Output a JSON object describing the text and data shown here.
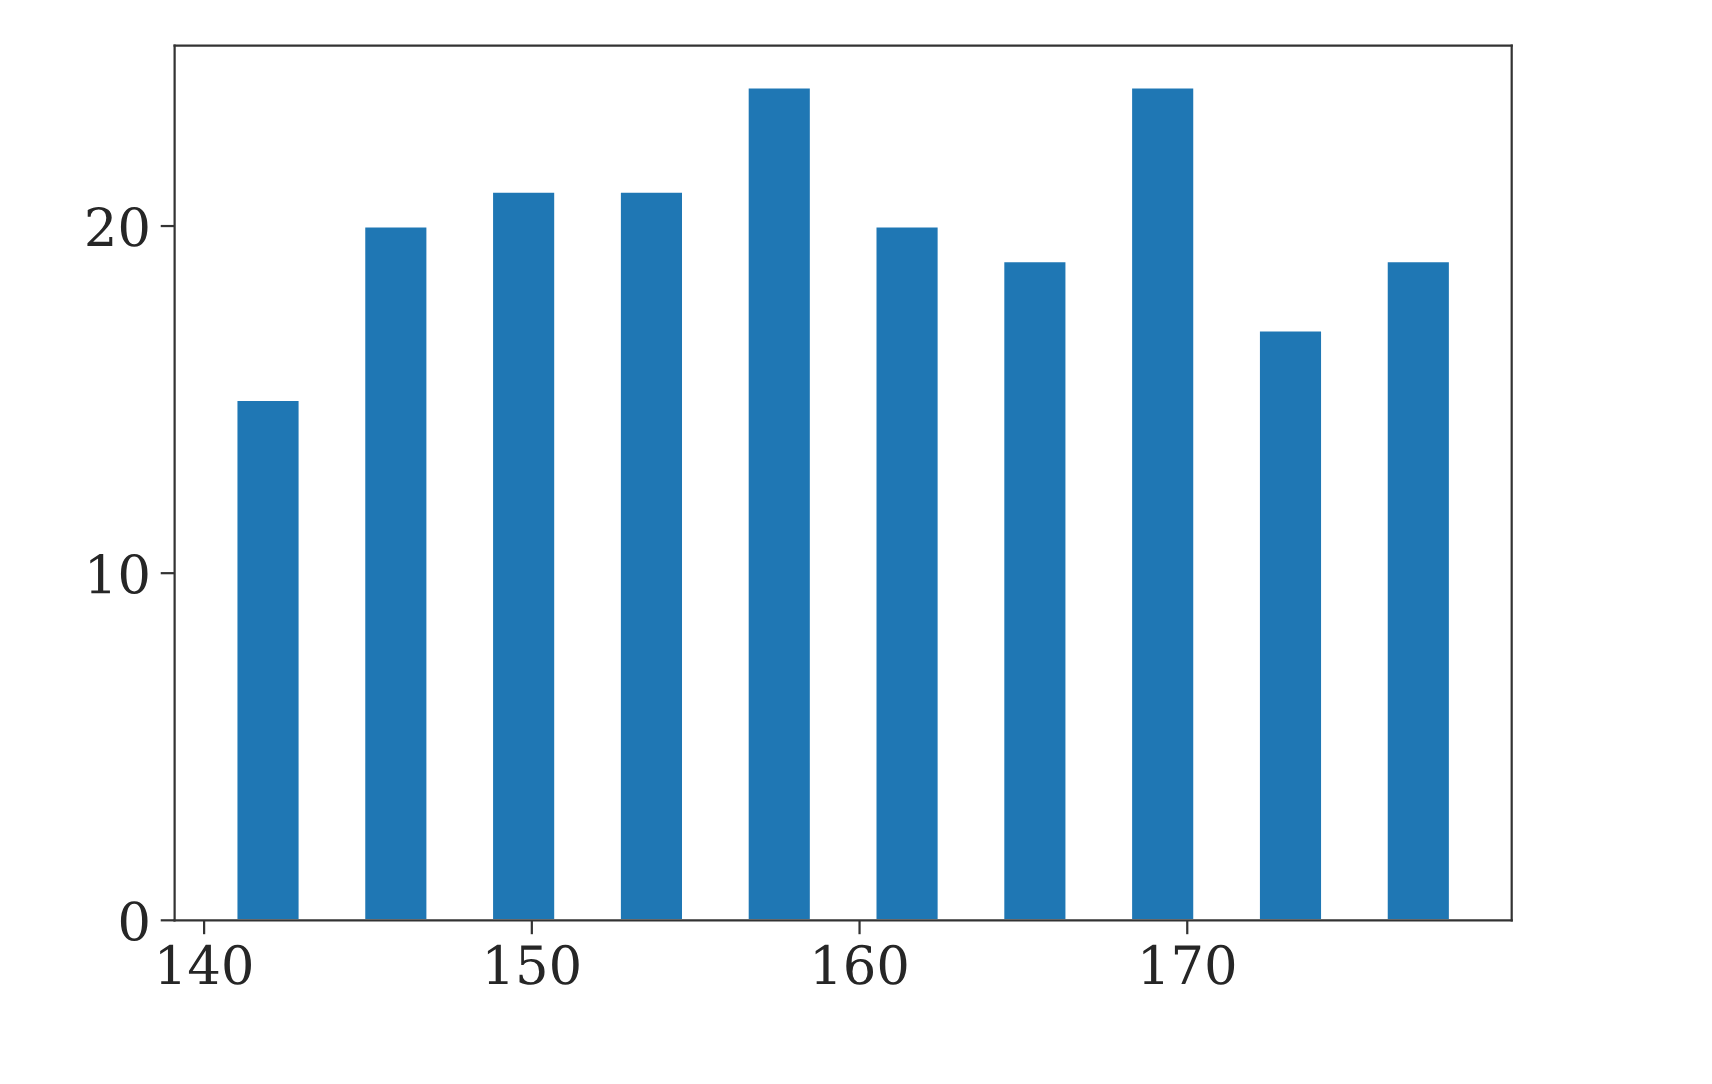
{
  "chart_data": {
    "type": "histogram",
    "bins": [
      140,
      143.9,
      147.8,
      151.7,
      155.6,
      159.5,
      163.4,
      167.3,
      171.2,
      175.1,
      179
    ],
    "values": [
      15,
      20,
      21,
      21,
      24,
      20,
      19,
      24,
      17,
      19
    ],
    "color": "#1f77b4",
    "xlim": [
      139.1,
      179.9
    ],
    "xticks": [
      140,
      150,
      160,
      170
    ],
    "ylim": [
      0,
      25.2
    ],
    "yticks": [
      0,
      10,
      20
    ],
    "grid": false
  }
}
